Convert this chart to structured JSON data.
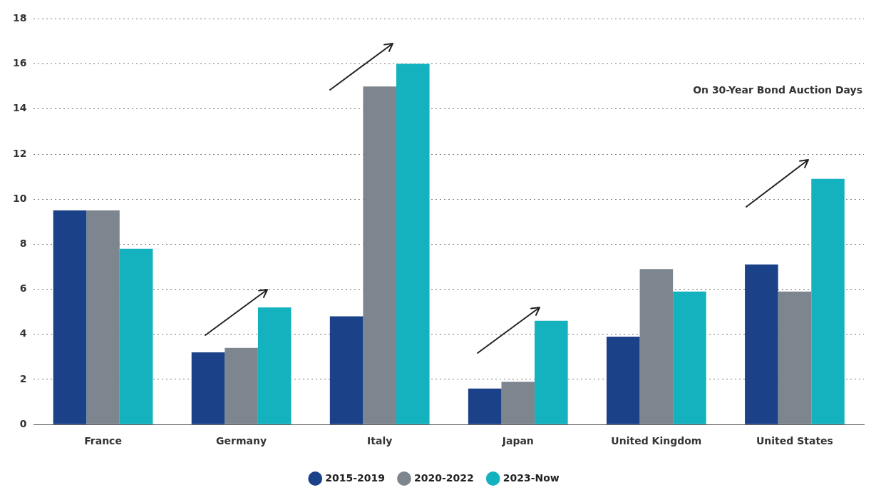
{
  "chart_data": {
    "type": "bar",
    "categories": [
      "France",
      "Germany",
      "Italy",
      "Japan",
      "United Kingdom",
      "United States"
    ],
    "series": [
      {
        "name": "2015-2019",
        "color": "#1b4189",
        "values": [
          9.5,
          3.2,
          4.8,
          1.6,
          3.9,
          7.1
        ]
      },
      {
        "name": "2020-2022",
        "color": "#7d868e",
        "values": [
          9.5,
          3.4,
          15,
          1.9,
          6.9,
          5.9
        ]
      },
      {
        "name": "2023-Now",
        "color": "#14b1bf",
        "values": [
          7.8,
          5.2,
          16,
          4.6,
          5.9,
          10.9
        ]
      }
    ],
    "ylim": [
      0,
      18
    ],
    "yticks": [
      0,
      2,
      4,
      6,
      8,
      10,
      12,
      14,
      16,
      18
    ],
    "grid": "y",
    "legend": "bottom",
    "annotations": [
      "On 30-Year Bond Auction Days"
    ]
  }
}
